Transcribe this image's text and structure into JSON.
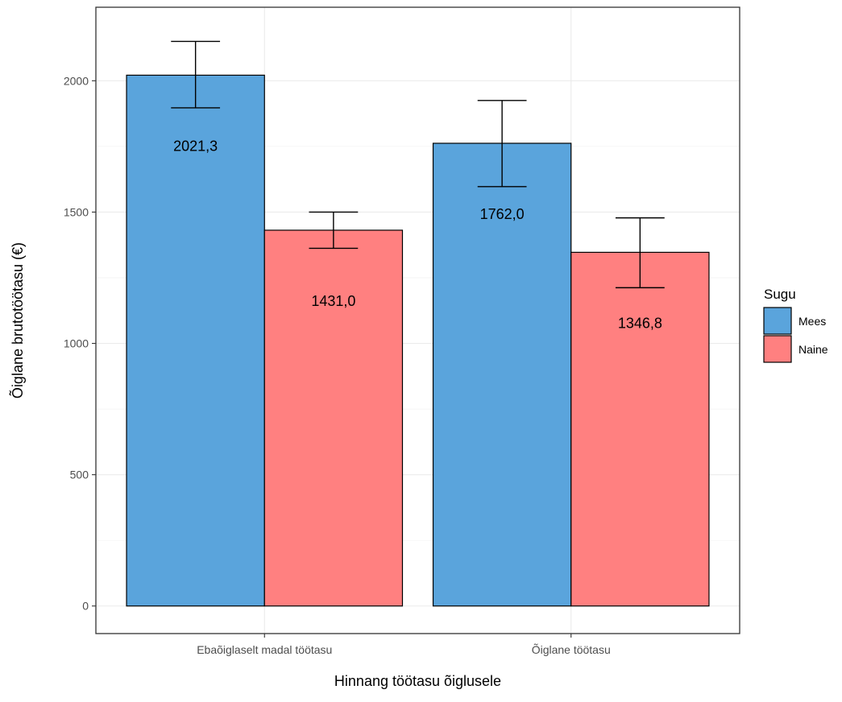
{
  "chart_data": {
    "type": "bar",
    "categories": [
      "Ebaõiglaselt madal töötasu",
      "Õiglane töötasu"
    ],
    "series": [
      {
        "name": "Mees",
        "color": "#5aa4dc",
        "values": [
          2021.3,
          1762.0
        ],
        "labels": [
          "2021,3",
          "1762,0"
        ],
        "error_low": [
          1897,
          1597
        ],
        "error_high": [
          2150,
          1925
        ]
      },
      {
        "name": "Naine",
        "color": "#ff8080",
        "values": [
          1431.0,
          1346.8
        ],
        "labels": [
          "1431,0",
          "1346,8"
        ],
        "error_low": [
          1362,
          1212
        ],
        "error_high": [
          1500,
          1478
        ]
      }
    ],
    "xlabel": "Hinnang töötasu õiglusele",
    "ylabel": "Õiglane brutotöötasu (€)",
    "ylim": [
      -105,
      2280
    ],
    "yticks": [
      0,
      500,
      1000,
      1500,
      2000
    ],
    "ytick_labels": [
      "0",
      "500",
      "1000",
      "1500",
      "2000"
    ],
    "legend": {
      "title": "Sugu",
      "position": "right"
    },
    "grid": true
  }
}
